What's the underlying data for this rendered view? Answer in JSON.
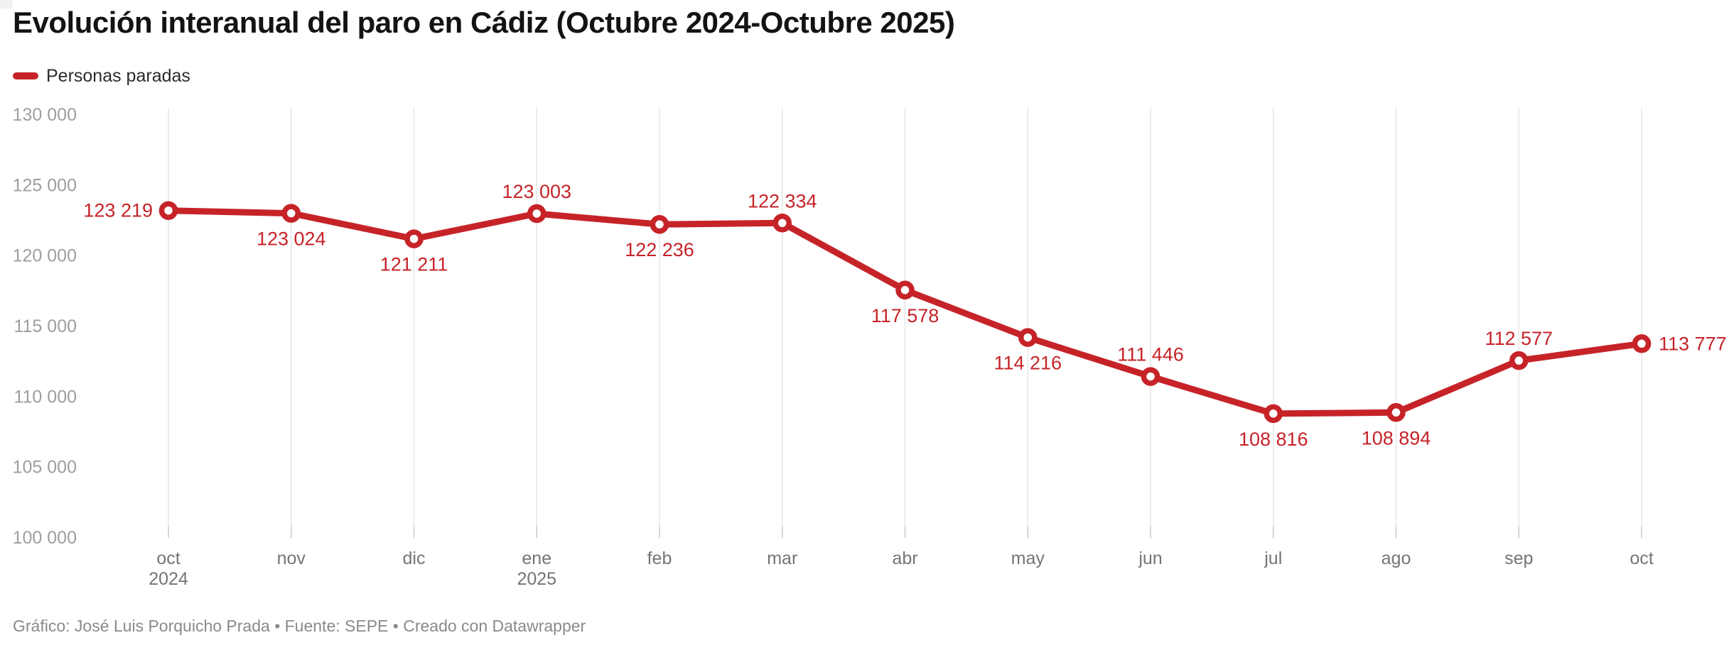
{
  "header": {
    "title": "Evolución interanual del paro en Cádiz (Octubre 2024-Octubre 2025)",
    "legend_label": "Personas paradas"
  },
  "footer": {
    "credit": "Gráfico: José Luis Porquicho Prada • Fuente: SEPE • Creado con Datawrapper"
  },
  "colors": {
    "line": "#c62328",
    "value_label": "#c62328",
    "grid": "#e6e6e6",
    "tick": "#c9c9c9",
    "y_axis_text": "#9e9e9e",
    "x_axis_text": "#757575",
    "title_text": "#131313",
    "footer_text": "#8a8a8a",
    "background": "#ffffff"
  },
  "chart_data": {
    "type": "line",
    "title": "Evolución interanual del paro en Cádiz (Octubre 2024-Octubre 2025)",
    "categories": [
      "oct",
      "nov",
      "dic",
      "ene",
      "feb",
      "mar",
      "abr",
      "may",
      "jun",
      "jul",
      "ago",
      "sep",
      "oct"
    ],
    "year_markers": [
      {
        "category_index": 0,
        "label": "2024"
      },
      {
        "category_index": 3,
        "label": "2025"
      }
    ],
    "series": [
      {
        "name": "Personas paradas",
        "values": [
          123219,
          123024,
          121211,
          123003,
          122236,
          122334,
          117578,
          114216,
          111446,
          108816,
          108894,
          112577,
          113777
        ]
      }
    ],
    "point_labels": [
      {
        "text": "123 219",
        "placement": "left"
      },
      {
        "text": "123 024",
        "placement": "below"
      },
      {
        "text": "121 211",
        "placement": "below"
      },
      {
        "text": "123 003",
        "placement": "above"
      },
      {
        "text": "122 236",
        "placement": "below"
      },
      {
        "text": "122 334",
        "placement": "above"
      },
      {
        "text": "117 578",
        "placement": "below"
      },
      {
        "text": "114 216",
        "placement": "below"
      },
      {
        "text": "111 446",
        "placement": "above"
      },
      {
        "text": "108 816",
        "placement": "below"
      },
      {
        "text": "108 894",
        "placement": "below"
      },
      {
        "text": "112 577",
        "placement": "above"
      },
      {
        "text": "113 777",
        "placement": "right"
      }
    ],
    "ylim": [
      100000,
      130000
    ],
    "yticks": [
      {
        "value": 130000,
        "label": "130 000"
      },
      {
        "value": 125000,
        "label": "125 000"
      },
      {
        "value": 120000,
        "label": "120 000"
      },
      {
        "value": 115000,
        "label": "115 000"
      },
      {
        "value": 110000,
        "label": "110 000"
      },
      {
        "value": 105000,
        "label": "105 000"
      },
      {
        "value": 100000,
        "label": "100 000"
      }
    ],
    "xlabel": "",
    "ylabel": "",
    "grid": "vertical-only",
    "legend_position": "top-left"
  }
}
